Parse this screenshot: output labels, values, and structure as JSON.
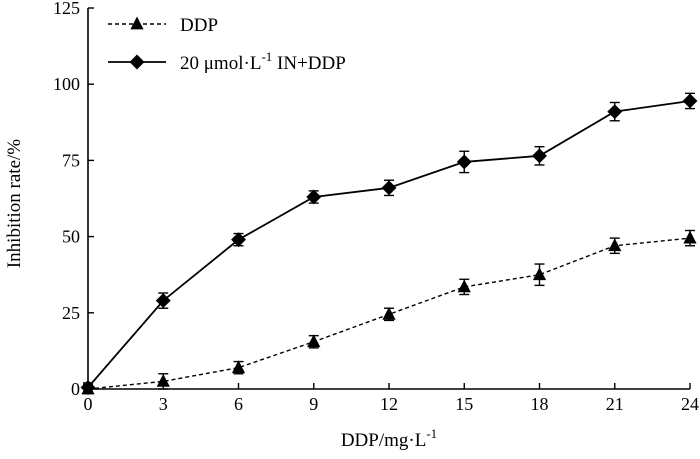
{
  "chart_data": {
    "type": "line",
    "title": "",
    "xlabel": "DDP/mg·L",
    "xlabel_superscript": "-1",
    "ylabel": "Inhibition rate/%",
    "x": [
      0,
      3,
      6,
      9,
      12,
      15,
      18,
      21,
      24
    ],
    "xlim": [
      0,
      24
    ],
    "ylim": [
      0,
      125
    ],
    "xticks": [
      "0",
      "3",
      "6",
      "9",
      "12",
      "15",
      "18",
      "21",
      "24"
    ],
    "yticks": [
      "0",
      "25",
      "50",
      "75",
      "100",
      "125"
    ],
    "grid": false,
    "legend_position": "top-left",
    "series": [
      {
        "name": "DDP",
        "marker": "triangle",
        "line_style": "dashed",
        "color": "#000000",
        "values": [
          0,
          2.5,
          7,
          15.5,
          24.5,
          33.5,
          37.5,
          47,
          49.5
        ],
        "errors": [
          1.5,
          2.5,
          2.0,
          2.0,
          2.0,
          2.5,
          3.5,
          2.5,
          2.5
        ]
      },
      {
        "name": "20 μmol·L",
        "name_superscript": "-1",
        "name_suffix": " IN+DDP",
        "marker": "diamond",
        "line_style": "solid",
        "color": "#000000",
        "values": [
          0.5,
          29,
          49,
          63,
          66,
          74.5,
          76.5,
          91,
          94.5
        ],
        "errors": [
          1.5,
          2.5,
          2.0,
          2.0,
          2.5,
          3.5,
          3.0,
          3.0,
          2.5
        ]
      }
    ]
  }
}
